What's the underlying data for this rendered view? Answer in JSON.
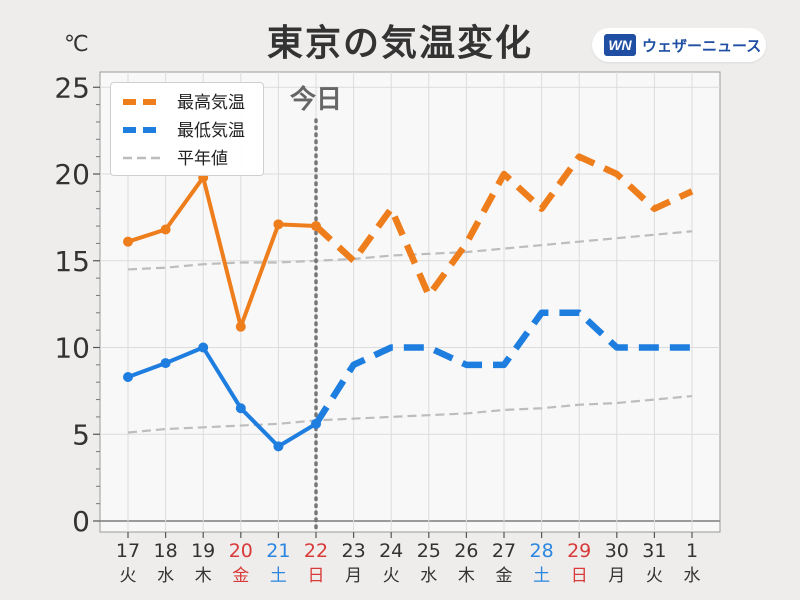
{
  "header": {
    "title": "東京の気温変化",
    "unit": "℃",
    "logo_mark": "WN",
    "logo_text": "ウェザーニュース"
  },
  "chart_data": {
    "type": "line",
    "title": "東京の気温変化",
    "ylabel": "℃",
    "ylim": [
      0,
      26
    ],
    "yticks": [
      "0",
      "5",
      "10",
      "15",
      "20",
      "25"
    ],
    "grid": true,
    "legend_position": "top-left",
    "today_label": "今日",
    "today_index": 5,
    "categories": [
      {
        "day": "17",
        "dow": "火",
        "color": "#333333"
      },
      {
        "day": "18",
        "dow": "水",
        "color": "#333333"
      },
      {
        "day": "19",
        "dow": "木",
        "color": "#333333"
      },
      {
        "day": "20",
        "dow": "金",
        "color": "#d83a3a"
      },
      {
        "day": "21",
        "dow": "土",
        "color": "#2a86e0"
      },
      {
        "day": "22",
        "dow": "日",
        "color": "#d83a3a"
      },
      {
        "day": "23",
        "dow": "月",
        "color": "#333333"
      },
      {
        "day": "24",
        "dow": "火",
        "color": "#333333"
      },
      {
        "day": "25",
        "dow": "水",
        "color": "#333333"
      },
      {
        "day": "26",
        "dow": "木",
        "color": "#333333"
      },
      {
        "day": "27",
        "dow": "金",
        "color": "#333333"
      },
      {
        "day": "28",
        "dow": "土",
        "color": "#2a86e0"
      },
      {
        "day": "29",
        "dow": "日",
        "color": "#d83a3a"
      },
      {
        "day": "30",
        "dow": "月",
        "color": "#333333"
      },
      {
        "day": "31",
        "dow": "火",
        "color": "#333333"
      },
      {
        "day": "1",
        "dow": "水",
        "color": "#333333"
      }
    ],
    "series": [
      {
        "name": "最高気温",
        "color": "#ee7d1c",
        "values": [
          16.1,
          16.8,
          19.8,
          11.2,
          17.1,
          17.0,
          15.0,
          18.0,
          13.0,
          16.0,
          20.0,
          18.0,
          21.0,
          20.0,
          18.0,
          19.0
        ]
      },
      {
        "name": "最低気温",
        "color": "#1e7ee0",
        "values": [
          8.3,
          9.1,
          10.0,
          6.5,
          4.3,
          5.6,
          9.0,
          10.0,
          10.0,
          9.0,
          9.0,
          12.0,
          12.0,
          10.0,
          10.0,
          10.0
        ]
      },
      {
        "name": "平年値",
        "color": "#bdbdbd",
        "values": [
          14.5,
          14.6,
          14.8,
          14.9,
          14.9,
          15.0,
          15.1,
          15.3,
          15.4,
          15.5,
          15.7,
          15.9,
          16.1,
          16.3,
          16.5,
          16.7
        ]
      },
      {
        "name": "",
        "color": "#bdbdbd",
        "values": [
          5.1,
          5.3,
          5.4,
          5.5,
          5.6,
          5.8,
          5.9,
          6.0,
          6.1,
          6.2,
          6.4,
          6.5,
          6.7,
          6.8,
          7.0,
          7.2
        ]
      }
    ]
  }
}
